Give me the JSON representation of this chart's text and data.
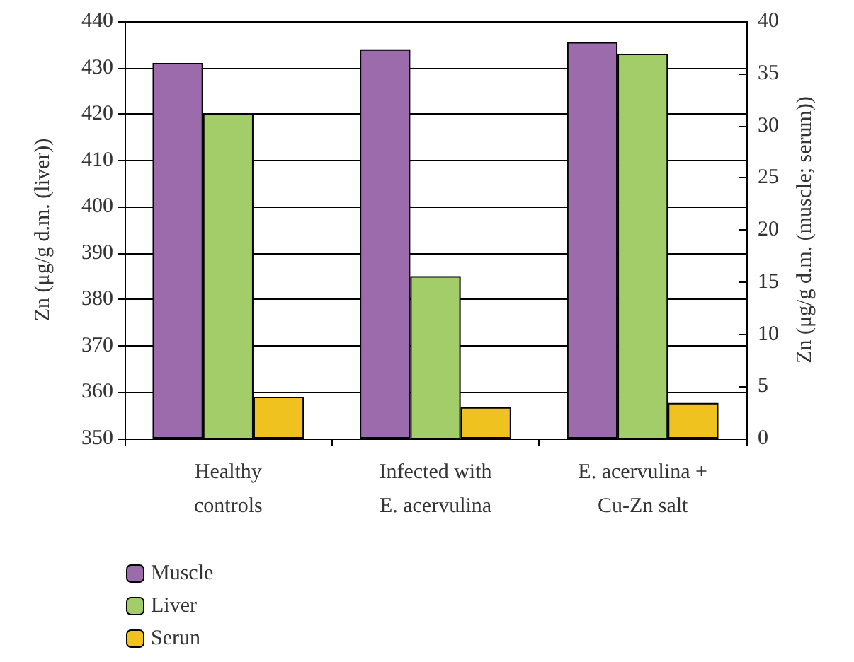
{
  "chart_data": {
    "type": "bar",
    "categories": [
      "Healthy\ncontrols",
      "Infected with\nE. acervulina",
      "E. acervulina +\nCu-Zn salt"
    ],
    "ylabel": "Zn (μg/g d.m. (liver))",
    "y2label": "Zn (μg/g d.m. (muscle; serum))",
    "series": [
      {
        "name": "Muscle",
        "color": "#9b6bab",
        "values": [
          36,
          37.3,
          38
        ],
        "axis": "y2"
      },
      {
        "name": "Liver",
        "color": "#a3cd68",
        "values": [
          420,
          385,
          433
        ]
      },
      {
        "name": "Serun",
        "color": "#f0c21f",
        "values": [
          4,
          3,
          3.4
        ],
        "axis": "y2"
      }
    ],
    "ylim": [
      350,
      440
    ],
    "yticks": [
      350,
      360,
      370,
      380,
      390,
      400,
      410,
      420,
      430,
      440
    ],
    "y2lim": [
      0,
      40
    ],
    "y2ticks": [
      0,
      5,
      10,
      15,
      20,
      25,
      30,
      35,
      40
    ],
    "grid": "y",
    "legend": "bottom left"
  }
}
